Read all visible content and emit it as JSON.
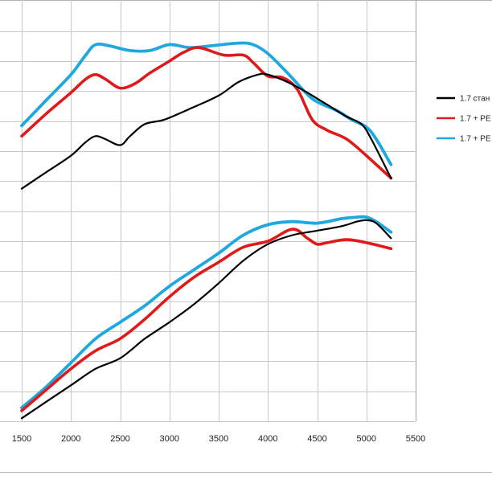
{
  "chart_data": {
    "type": "line",
    "xlabel": "",
    "ylabel": "",
    "x_ticks": [
      1500,
      2000,
      2500,
      3000,
      3500,
      4000,
      4500,
      5000,
      5500
    ],
    "xlim": [
      1500,
      5500
    ],
    "ylim": [
      0,
      13.5
    ],
    "y_gridlines": 13,
    "grid": true,
    "legend_position": "right",
    "series": [
      {
        "name": "1.7 стан",
        "color": "#000000",
        "group": "upper",
        "x": [
          1500,
          1750,
          2000,
          2150,
          2250,
          2350,
          2500,
          2600,
          2750,
          2950,
          3200,
          3500,
          3700,
          3900,
          4000,
          4200,
          4400,
          4600,
          4800,
          4950,
          5050,
          5250
        ],
        "y": [
          7.75,
          8.3,
          8.85,
          9.3,
          9.5,
          9.4,
          9.2,
          9.5,
          9.9,
          10.05,
          10.4,
          10.85,
          11.3,
          11.55,
          11.55,
          11.3,
          10.95,
          10.55,
          10.15,
          9.9,
          9.4,
          8.1
        ]
      },
      {
        "name": "1.7 + РЕ",
        "color": "#e01a1a",
        "group": "upper",
        "x": [
          1500,
          1750,
          2000,
          2150,
          2250,
          2350,
          2500,
          2650,
          2800,
          3000,
          3150,
          3300,
          3550,
          3750,
          3850,
          4000,
          4150,
          4300,
          4450,
          4600,
          4800,
          5000,
          5250
        ],
        "y": [
          9.5,
          10.25,
          10.95,
          11.4,
          11.55,
          11.4,
          11.1,
          11.25,
          11.6,
          12.0,
          12.3,
          12.45,
          12.2,
          12.2,
          11.95,
          11.5,
          11.45,
          11.05,
          10.05,
          9.7,
          9.4,
          8.85,
          8.1
        ]
      },
      {
        "name": "1.7 + РЕ",
        "color": "#1fa8e0",
        "group": "upper",
        "x": [
          1500,
          1750,
          2000,
          2150,
          2250,
          2400,
          2600,
          2800,
          3000,
          3200,
          3400,
          3700,
          3850,
          4000,
          4200,
          4450,
          4700,
          4850,
          5000,
          5100,
          5250
        ],
        "y": [
          9.85,
          10.7,
          11.55,
          12.2,
          12.55,
          12.5,
          12.35,
          12.35,
          12.55,
          12.45,
          12.5,
          12.6,
          12.55,
          12.25,
          11.6,
          10.75,
          10.35,
          10.05,
          9.8,
          9.4,
          8.55
        ]
      },
      {
        "name": "1.7 стан",
        "color": "#000000",
        "group": "lower",
        "x": [
          1500,
          1750,
          2000,
          2250,
          2500,
          2750,
          3000,
          3250,
          3500,
          3750,
          4000,
          4250,
          4500,
          4750,
          4900,
          5000,
          5100,
          5250
        ],
        "y": [
          0.1,
          0.65,
          1.2,
          1.75,
          2.1,
          2.75,
          3.3,
          3.9,
          4.6,
          5.35,
          5.9,
          6.2,
          6.35,
          6.5,
          6.65,
          6.7,
          6.6,
          6.1
        ]
      },
      {
        "name": "1.7 + РЕ",
        "color": "#e01a1a",
        "group": "lower",
        "x": [
          1500,
          1750,
          2000,
          2250,
          2500,
          2750,
          3000,
          3250,
          3500,
          3750,
          4000,
          4250,
          4400,
          4500,
          4600,
          4800,
          5000,
          5250
        ],
        "y": [
          0.35,
          1.05,
          1.75,
          2.35,
          2.75,
          3.4,
          4.15,
          4.8,
          5.3,
          5.8,
          6.0,
          6.4,
          6.1,
          5.9,
          5.95,
          6.05,
          5.95,
          5.75
        ]
      },
      {
        "name": "1.7 + РЕ",
        "color": "#1fa8e0",
        "group": "lower",
        "x": [
          1500,
          1750,
          2000,
          2250,
          2500,
          2750,
          3000,
          3250,
          3500,
          3750,
          4000,
          4250,
          4500,
          4750,
          4900,
          5000,
          5100,
          5250
        ],
        "y": [
          0.45,
          1.15,
          1.95,
          2.75,
          3.3,
          3.85,
          4.5,
          5.05,
          5.6,
          6.2,
          6.55,
          6.65,
          6.6,
          6.75,
          6.8,
          6.8,
          6.65,
          6.3
        ]
      }
    ]
  },
  "legend": {
    "entries": [
      {
        "label": "1.7 стан",
        "color": "#000000"
      },
      {
        "label": "1.7 + РЕ",
        "color": "#e01a1a"
      },
      {
        "label": "1.7 + РЕ",
        "color": "#1fa8e0"
      }
    ]
  }
}
